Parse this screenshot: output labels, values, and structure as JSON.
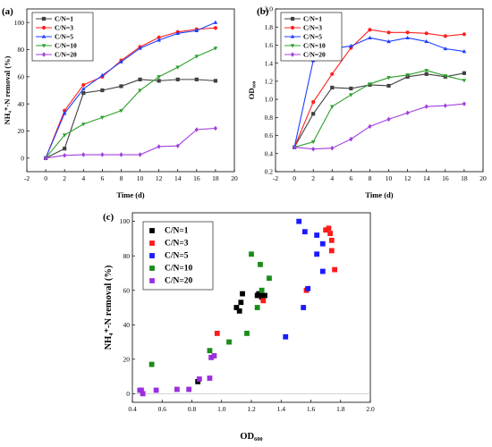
{
  "chart_data": [
    {
      "id": "a",
      "panel_label": "(a)",
      "type": "line",
      "xlabel": "Time (d)",
      "ylabel": "NH₄⁺-N removal (%)",
      "xlim": [
        -2,
        20
      ],
      "ylim": [
        -10,
        110
      ],
      "xticks": [
        -2,
        0,
        2,
        4,
        6,
        8,
        10,
        12,
        14,
        16,
        18,
        20
      ],
      "yticks": [
        0,
        20,
        40,
        60,
        80,
        100
      ],
      "legend_placement": "top-left",
      "x": [
        0,
        2,
        4,
        6,
        8,
        10,
        12,
        14,
        16,
        18
      ],
      "series": [
        {
          "name": "C/N=1",
          "color": "#404040",
          "marker": "square",
          "values": [
            0,
            7,
            48,
            50,
            53,
            58,
            57,
            58,
            58,
            57
          ]
        },
        {
          "name": "C/N=3",
          "color": "#ff2020",
          "marker": "circle",
          "values": [
            0,
            35,
            54,
            60,
            72,
            82,
            89,
            93,
            95,
            96
          ]
        },
        {
          "name": "C/N=5",
          "color": "#1f3fff",
          "marker": "triangle-up",
          "values": [
            0,
            33,
            51,
            61,
            71,
            81,
            87,
            92,
            94,
            100
          ]
        },
        {
          "name": "C/N=10",
          "color": "#2ca02c",
          "marker": "triangle-down",
          "values": [
            0,
            17,
            25,
            30,
            35,
            50,
            60,
            67,
            75,
            81
          ]
        },
        {
          "name": "C/N=20",
          "color": "#a040e0",
          "marker": "diamond",
          "values": [
            0,
            2,
            2.5,
            2.5,
            2.5,
            2.5,
            8.5,
            9,
            21,
            22
          ]
        }
      ]
    },
    {
      "id": "b",
      "panel_label": "(b)",
      "type": "line",
      "xlabel": "Time (d)",
      "ylabel": "OD₆₀₀",
      "xlim": [
        -2,
        20
      ],
      "ylim": [
        0.2,
        2.0
      ],
      "xticks": [
        -2,
        0,
        2,
        4,
        6,
        8,
        10,
        12,
        14,
        16,
        18,
        20
      ],
      "yticks": [
        0.2,
        0.4,
        0.6,
        0.8,
        1.0,
        1.2,
        1.4,
        1.6,
        1.8,
        2.0
      ],
      "ytick_labels": [
        "0.2",
        "0.4",
        "0.6",
        "0.8",
        "1.0",
        "1.2",
        "1.4",
        "1.6",
        "1.8",
        "2.0"
      ],
      "legend_placement": "top-left",
      "x": [
        0,
        2,
        4,
        6,
        8,
        10,
        12,
        14,
        16,
        18
      ],
      "series": [
        {
          "name": "C/N=1",
          "color": "#404040",
          "marker": "square",
          "values": [
            0.47,
            0.84,
            1.13,
            1.12,
            1.16,
            1.15,
            1.25,
            1.28,
            1.25,
            1.29
          ]
        },
        {
          "name": "C/N=3",
          "color": "#ff2020",
          "marker": "circle",
          "values": [
            0.47,
            0.97,
            1.28,
            1.57,
            1.77,
            1.74,
            1.74,
            1.73,
            1.7,
            1.72
          ]
        },
        {
          "name": "C/N=5",
          "color": "#1f3fff",
          "marker": "triangle-up",
          "values": [
            0.47,
            1.43,
            1.56,
            1.59,
            1.68,
            1.64,
            1.68,
            1.64,
            1.56,
            1.53
          ]
        },
        {
          "name": "C/N=10",
          "color": "#2ca02c",
          "marker": "triangle-down",
          "values": [
            0.47,
            0.53,
            0.92,
            1.05,
            1.17,
            1.24,
            1.27,
            1.32,
            1.26,
            1.21
          ]
        },
        {
          "name": "C/N=20",
          "color": "#a040e0",
          "marker": "diamond",
          "values": [
            0.47,
            0.45,
            0.46,
            0.56,
            0.7,
            0.78,
            0.85,
            0.92,
            0.93,
            0.95
          ]
        }
      ]
    },
    {
      "id": "c",
      "panel_label": "(c)",
      "type": "scatter",
      "xlabel": "OD₆₀₀",
      "ylabel": "NH₄⁺-N removal (%)",
      "xlim": [
        0.4,
        2.0
      ],
      "ylim": [
        -5,
        105
      ],
      "xticks": [
        0.4,
        0.6,
        0.8,
        1.0,
        1.2,
        1.4,
        1.6,
        1.8,
        2.0
      ],
      "xtick_labels": [
        "0.4",
        "0.6",
        "0.8",
        "1.0",
        "1.2",
        "1.4",
        "1.6",
        "1.8",
        "2.0"
      ],
      "yticks": [
        0,
        20,
        40,
        60,
        80,
        100
      ],
      "zero_line": true,
      "legend_placement": "top-left",
      "series": [
        {
          "name": "C/N=1",
          "color": "#000000",
          "marker": "square",
          "points": [
            [
              0.84,
              7
            ],
            [
              1.1,
              50
            ],
            [
              1.12,
              48
            ],
            [
              1.13,
              53
            ],
            [
              1.14,
              58
            ],
            [
              1.24,
              57
            ],
            [
              1.25,
              58
            ],
            [
              1.26,
              57
            ],
            [
              1.27,
              56
            ],
            [
              1.29,
              57
            ]
          ]
        },
        {
          "name": "C/N=3",
          "color": "#ff1a1a",
          "marker": "square",
          "points": [
            [
              0.97,
              35
            ],
            [
              1.28,
              54
            ],
            [
              1.57,
              60
            ],
            [
              1.7,
              95
            ],
            [
              1.72,
              96
            ],
            [
              1.73,
              93
            ],
            [
              1.74,
              89
            ],
            [
              1.74,
              83
            ],
            [
              1.76,
              72
            ]
          ]
        },
        {
          "name": "C/N=5",
          "color": "#1a1aff",
          "marker": "square",
          "points": [
            [
              1.43,
              33
            ],
            [
              1.52,
              100
            ],
            [
              1.55,
              50
            ],
            [
              1.56,
              94
            ],
            [
              1.58,
              61
            ],
            [
              1.64,
              81
            ],
            [
              1.64,
              92
            ],
            [
              1.68,
              87
            ],
            [
              1.68,
              71
            ]
          ]
        },
        {
          "name": "C/N=10",
          "color": "#1a8c1a",
          "marker": "square",
          "points": [
            [
              0.53,
              17
            ],
            [
              0.92,
              25
            ],
            [
              1.05,
              30
            ],
            [
              1.17,
              35
            ],
            [
              1.2,
              81
            ],
            [
              1.24,
              50
            ],
            [
              1.26,
              75
            ],
            [
              1.27,
              60
            ],
            [
              1.32,
              67
            ]
          ]
        },
        {
          "name": "C/N=20",
          "color": "#9b2fe0",
          "marker": "square",
          "points": [
            [
              0.45,
              2
            ],
            [
              0.46,
              2
            ],
            [
              0.47,
              0
            ],
            [
              0.56,
              2
            ],
            [
              0.7,
              2.5
            ],
            [
              0.78,
              2.5
            ],
            [
              0.85,
              8.5
            ],
            [
              0.92,
              9
            ],
            [
              0.93,
              21
            ],
            [
              0.95,
              22
            ]
          ]
        }
      ]
    }
  ]
}
